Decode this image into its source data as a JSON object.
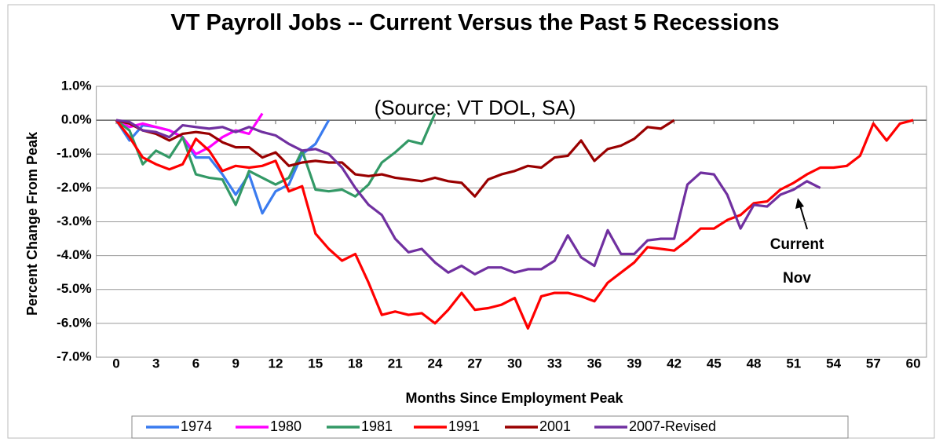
{
  "chart_data": {
    "type": "line",
    "title": "VT Payroll Jobs -- Current Versus the Past 5 Recessions",
    "subtitle": "(Source; VT DOL, SA)",
    "x_label": "Months Since Employment Peak",
    "y_label": "Percent Change From Peak",
    "annotations": [
      "Current",
      "Nov"
    ],
    "x": [
      0,
      1,
      2,
      3,
      4,
      5,
      6,
      7,
      8,
      9,
      10,
      11,
      12,
      13,
      14,
      15,
      16,
      17,
      18,
      19,
      20,
      21,
      22,
      23,
      24,
      25,
      26,
      27,
      28,
      29,
      30,
      31,
      32,
      33,
      34,
      35,
      36,
      37,
      38,
      39,
      40,
      41,
      42,
      43,
      44,
      45,
      46,
      47,
      48,
      49,
      50,
      51,
      52,
      53,
      54,
      55,
      56,
      57,
      58,
      59,
      60
    ],
    "xlim": [
      -1.5,
      61
    ],
    "xticks": [
      0,
      3,
      6,
      9,
      12,
      15,
      18,
      21,
      24,
      27,
      30,
      33,
      36,
      39,
      42,
      45,
      48,
      51,
      54,
      57,
      60
    ],
    "ylim": [
      -7,
      1
    ],
    "yticks": [
      {
        "value": -7,
        "label": "-7.0%"
      },
      {
        "value": -6,
        "label": "-6.0%"
      },
      {
        "value": -5,
        "label": "-5.0%"
      },
      {
        "value": -4,
        "label": "-4.0%"
      },
      {
        "value": -3,
        "label": "-3.0%"
      },
      {
        "value": -2,
        "label": "-2.0%"
      },
      {
        "value": -1,
        "label": "-1.0%"
      },
      {
        "value": 0,
        "label": "0.0%"
      },
      {
        "value": 1,
        "label": "1.0%"
      }
    ],
    "grid": true,
    "legend": "bottom",
    "series": [
      {
        "name": "1974",
        "color": "#3a7bef",
        "values": [
          0,
          -0.6,
          -0.15,
          -0.2,
          -0.3,
          -0.5,
          -1.1,
          -1.1,
          -1.6,
          -2.2,
          -1.6,
          -2.75,
          -2.1,
          -1.9,
          -1.0,
          -0.7,
          0.0,
          null,
          null,
          null,
          null,
          null,
          null,
          null,
          null,
          null,
          null,
          null,
          null,
          null,
          null,
          null,
          null,
          null,
          null,
          null,
          null,
          null,
          null,
          null,
          null,
          null,
          null,
          null,
          null,
          null,
          null,
          null,
          null,
          null,
          null,
          null,
          null,
          null,
          null,
          null,
          null,
          null,
          null,
          null,
          null
        ]
      },
      {
        "name": "1980",
        "color": "#ff00ff",
        "values": [
          0,
          -0.2,
          -0.1,
          -0.2,
          -0.3,
          -0.5,
          -1.0,
          -0.8,
          -0.5,
          -0.3,
          -0.4,
          0.2,
          null,
          null,
          null,
          null,
          null,
          null,
          null,
          null,
          null,
          null,
          null,
          null,
          null,
          null,
          null,
          null,
          null,
          null,
          null,
          null,
          null,
          null,
          null,
          null,
          null,
          null,
          null,
          null,
          null,
          null,
          null,
          null,
          null,
          null,
          null,
          null,
          null,
          null,
          null,
          null,
          null,
          null,
          null,
          null,
          null,
          null,
          null,
          null,
          null
        ]
      },
      {
        "name": "1981",
        "color": "#339966",
        "values": [
          0,
          -0.3,
          -1.3,
          -0.9,
          -1.1,
          -0.5,
          -1.6,
          -1.7,
          -1.75,
          -2.5,
          -1.5,
          -1.7,
          -1.9,
          -1.7,
          -0.9,
          -2.05,
          -2.1,
          -2.05,
          -2.25,
          -1.9,
          -1.25,
          -0.95,
          -0.6,
          -0.7,
          0.2,
          null,
          null,
          null,
          null,
          null,
          null,
          null,
          null,
          null,
          null,
          null,
          null,
          null,
          null,
          null,
          null,
          null,
          null,
          null,
          null,
          null,
          null,
          null,
          null,
          null,
          null,
          null,
          null,
          null,
          null,
          null,
          null,
          null,
          null,
          null,
          null
        ]
      },
      {
        "name": "1991",
        "color": "#ff0000",
        "values": [
          0,
          -0.5,
          -1.1,
          -1.3,
          -1.45,
          -1.3,
          -0.55,
          -0.9,
          -1.5,
          -1.35,
          -1.4,
          -1.35,
          -1.2,
          -2.1,
          -1.95,
          -3.35,
          -3.8,
          -4.15,
          -3.95,
          -4.8,
          -5.75,
          -5.65,
          -5.75,
          -5.7,
          -6.0,
          -5.6,
          -5.1,
          -5.6,
          -5.55,
          -5.45,
          -5.25,
          -6.15,
          -5.2,
          -5.1,
          -5.1,
          -5.2,
          -5.35,
          -4.8,
          -4.5,
          -4.2,
          -3.75,
          -3.8,
          -3.85,
          -3.55,
          -3.2,
          -3.2,
          -2.95,
          -2.8,
          -2.45,
          -2.4,
          -2.05,
          -1.85,
          -1.6,
          -1.4,
          -1.4,
          -1.35,
          -1.05,
          -0.1,
          -0.6,
          -0.1,
          0.0
        ]
      },
      {
        "name": "2001",
        "color": "#990000",
        "values": [
          0,
          -0.1,
          -0.3,
          -0.4,
          -0.6,
          -0.4,
          -0.35,
          -0.4,
          -0.65,
          -0.8,
          -0.8,
          -1.1,
          -0.95,
          -1.35,
          -1.25,
          -1.2,
          -1.25,
          -1.25,
          -1.6,
          -1.65,
          -1.6,
          -1.7,
          -1.75,
          -1.8,
          -1.7,
          -1.8,
          -1.85,
          -2.25,
          -1.75,
          -1.6,
          -1.5,
          -1.35,
          -1.4,
          -1.1,
          -1.05,
          -0.6,
          -1.2,
          -0.85,
          -0.75,
          -0.55,
          -0.2,
          -0.25,
          0.0,
          null,
          null,
          null,
          null,
          null,
          null,
          null,
          null,
          null,
          null,
          null,
          null,
          null,
          null,
          null,
          null,
          null,
          null
        ]
      },
      {
        "name": "2007-Revised",
        "color": "#7030a0",
        "values": [
          0,
          -0.05,
          -0.3,
          -0.35,
          -0.5,
          -0.15,
          -0.2,
          -0.25,
          -0.2,
          -0.35,
          -0.2,
          -0.35,
          -0.45,
          -0.7,
          -0.9,
          -0.85,
          -1.0,
          -1.4,
          -2.0,
          -2.5,
          -2.8,
          -3.5,
          -3.9,
          -3.8,
          -4.2,
          -4.5,
          -4.3,
          -4.55,
          -4.35,
          -4.35,
          -4.5,
          -4.4,
          -4.4,
          -4.15,
          -3.4,
          -4.05,
          -4.3,
          -3.25,
          -3.95,
          -3.95,
          -3.55,
          -3.5,
          -3.5,
          -1.9,
          -1.55,
          -1.6,
          -2.2,
          -3.2,
          -2.5,
          -2.55,
          -2.2,
          -2.05,
          -1.8,
          -2.0,
          null,
          null,
          null,
          null,
          null,
          null,
          null
        ]
      }
    ]
  }
}
